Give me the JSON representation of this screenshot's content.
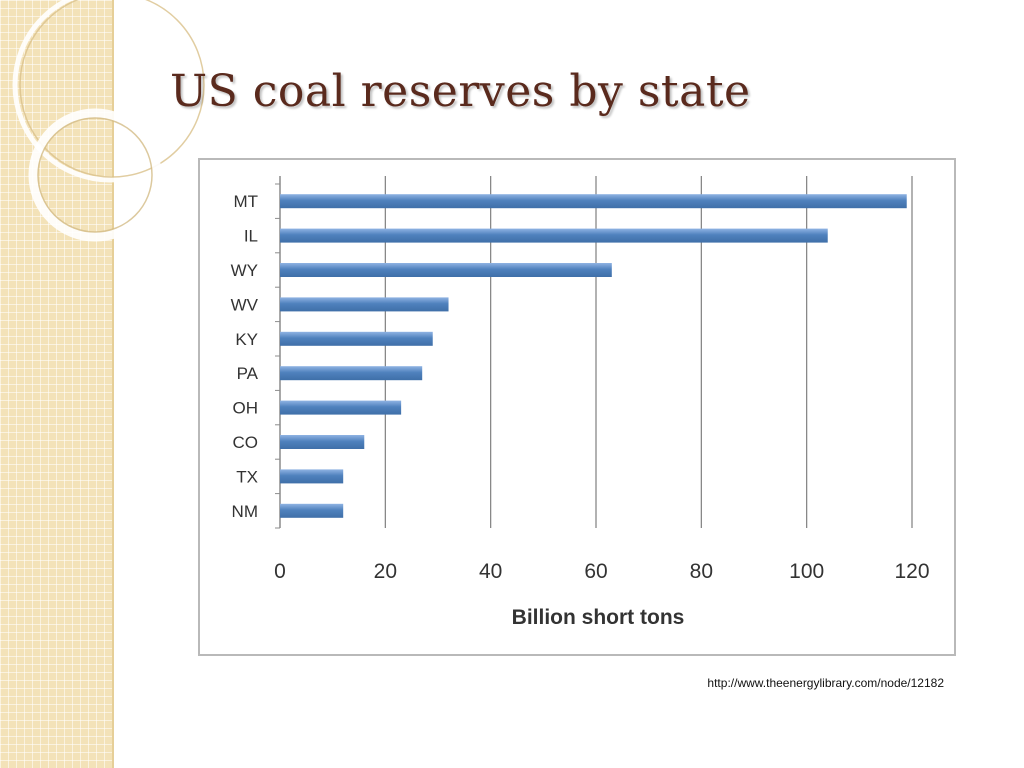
{
  "slide": {
    "title": "US coal reserves by state",
    "source_url": "http://www.theenergylibrary.com/node/12182"
  },
  "colors": {
    "bar": "#4f81bd",
    "bar_highlight": "#8fb3e3",
    "grid": "#7f7f7f",
    "axis": "#8c8c8c",
    "title": "#5a2a1d",
    "band": "#f3e2b8"
  },
  "chart_data": {
    "type": "bar",
    "orientation": "horizontal",
    "categories": [
      "MT",
      "IL",
      "WY",
      "WV",
      "KY",
      "PA",
      "OH",
      "CO",
      "TX",
      "NM"
    ],
    "values": [
      119,
      104,
      63,
      32,
      29,
      27,
      23,
      16,
      12,
      12
    ],
    "xlabel": "Billion short tons",
    "ylabel": "",
    "xlim": [
      0,
      120
    ],
    "xticks": [
      0,
      20,
      40,
      60,
      80,
      100,
      120
    ],
    "grid": "vertical",
    "legend": "none"
  }
}
